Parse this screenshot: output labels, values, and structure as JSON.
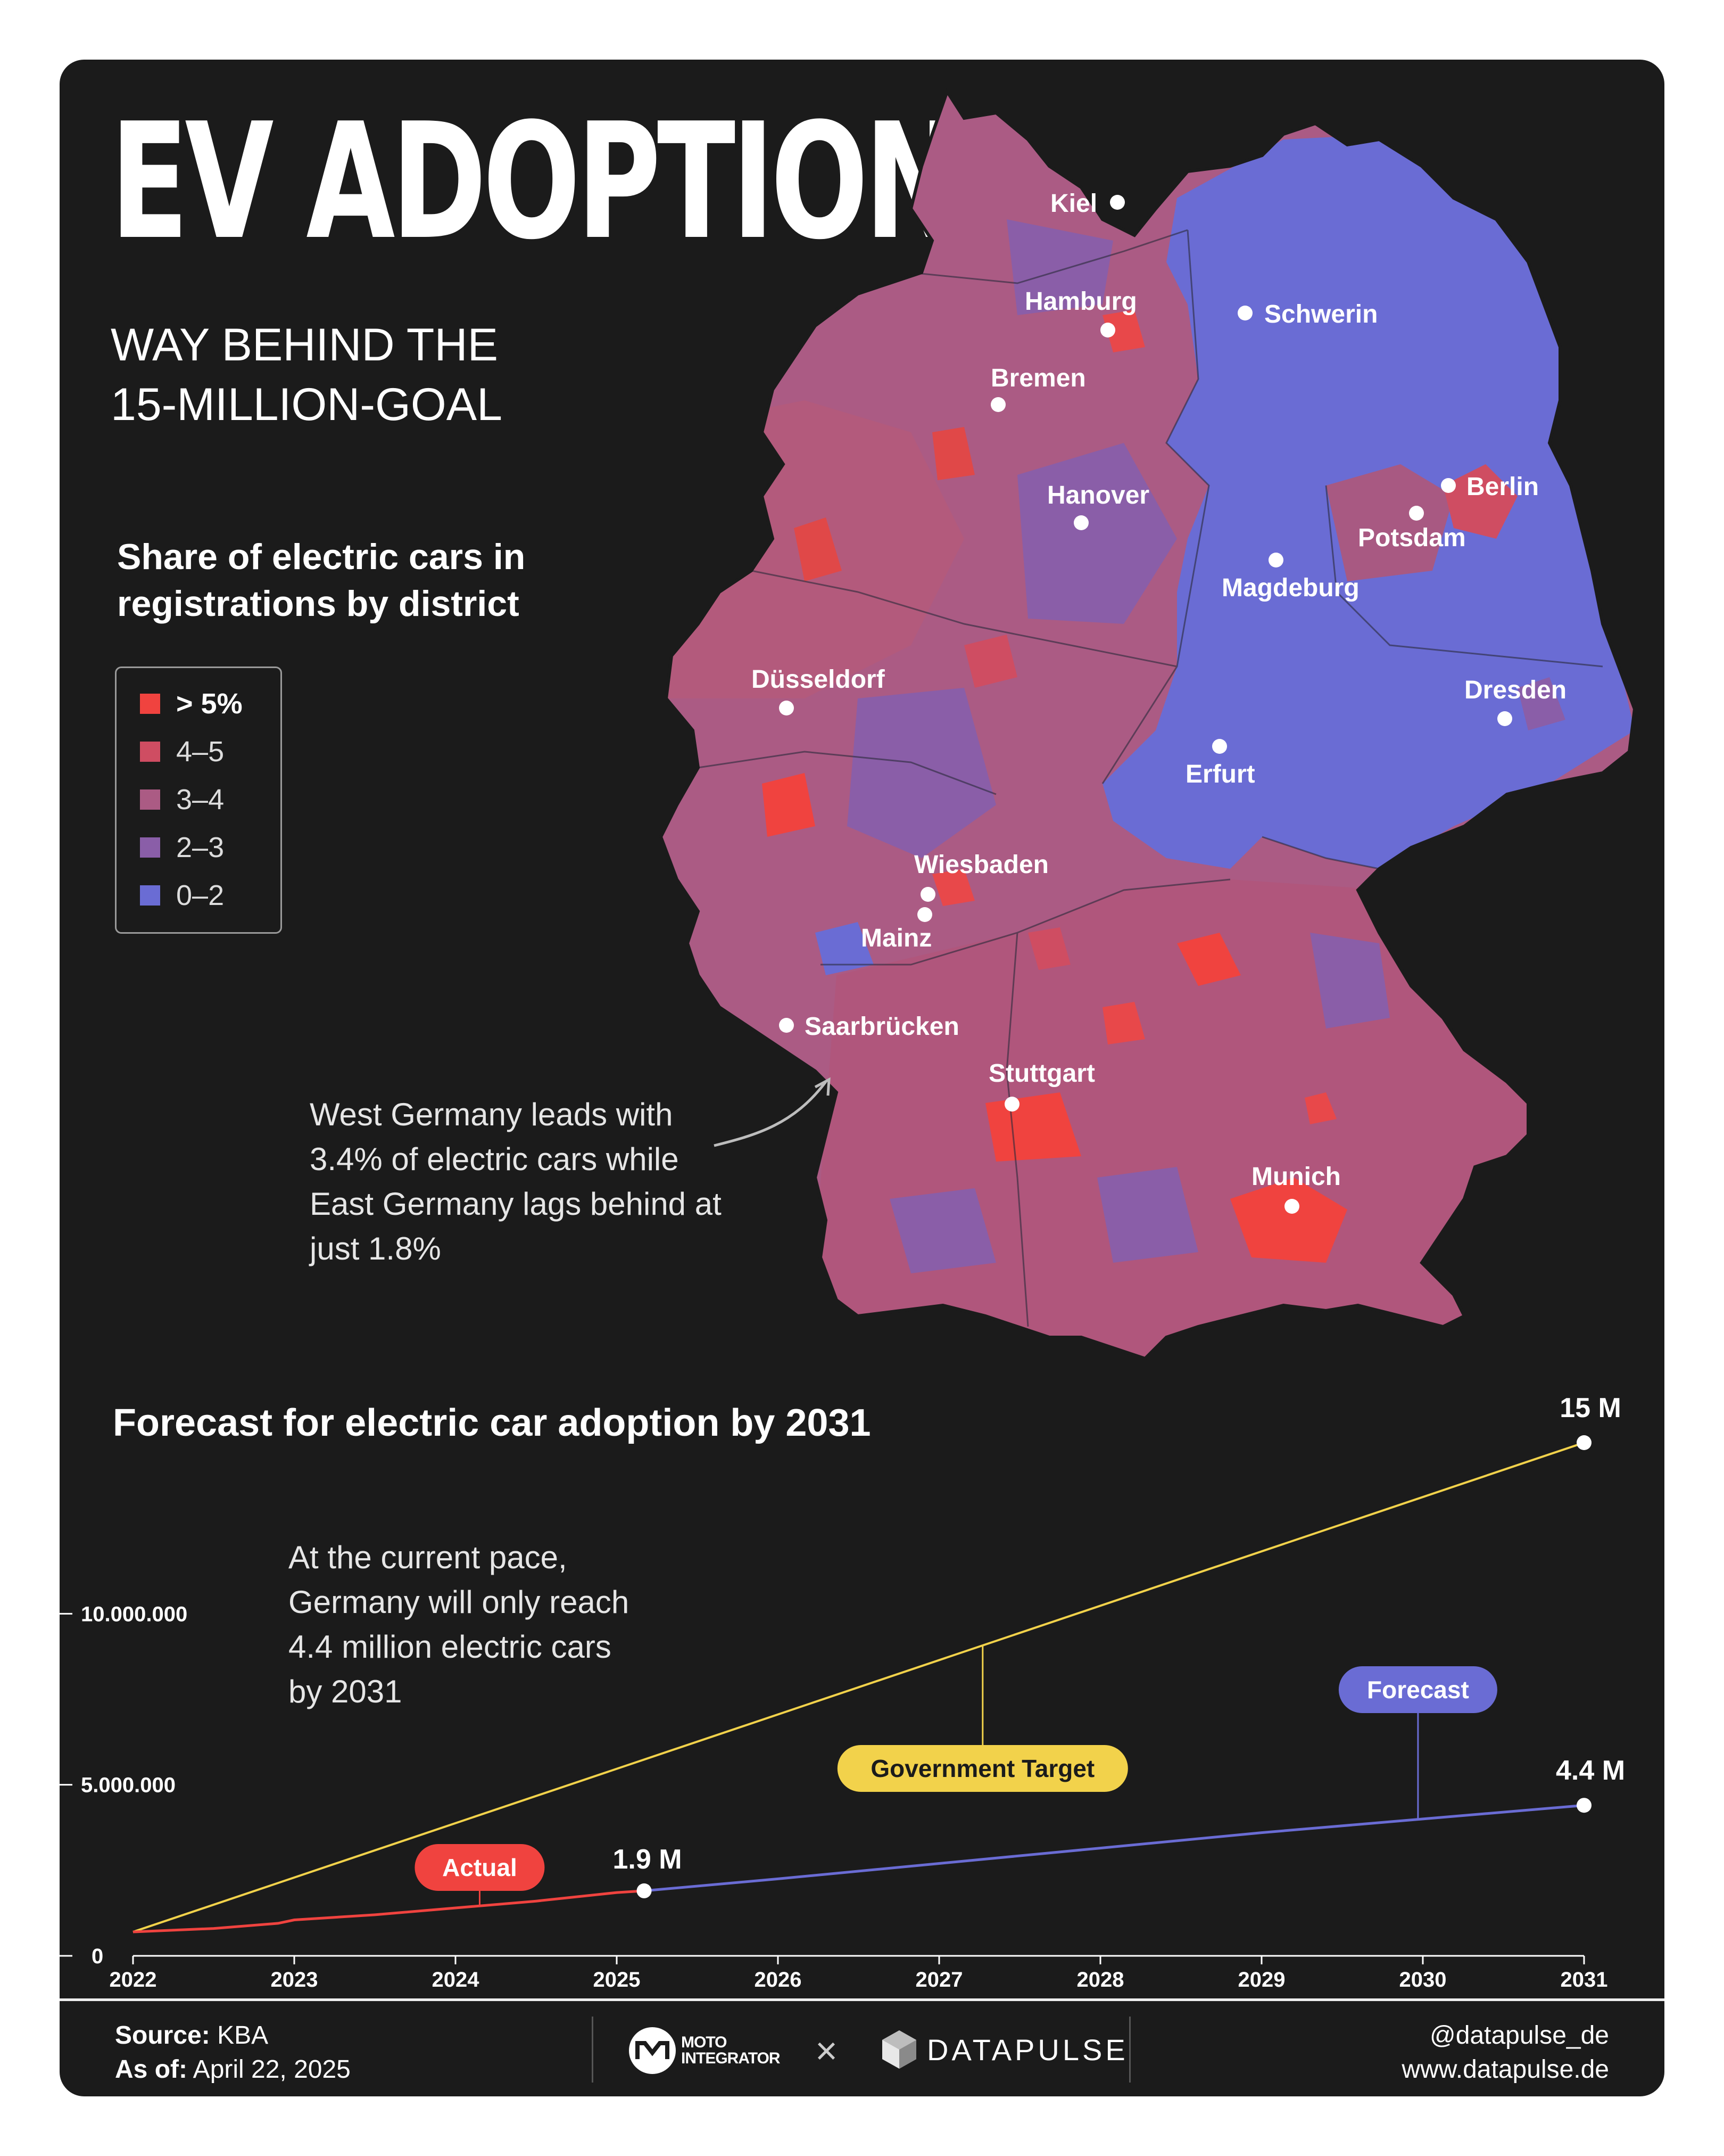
{
  "header": {
    "title": "EV ADOPTION",
    "subtitle_line1": "WAY BEHIND THE",
    "subtitle_line2": "15-MILLION-GOAL"
  },
  "map": {
    "heading_line1": "Share of electric cars in",
    "heading_line2": "registrations by district",
    "legend": [
      {
        "label": "> 5%",
        "color": "#f0433f"
      },
      {
        "label": "4–5",
        "color": "#cf4d62"
      },
      {
        "label": "3–4",
        "color": "#ab5b84"
      },
      {
        "label": "2–3",
        "color": "#8a5ea8"
      },
      {
        "label": "0–2",
        "color": "#6a6cd4"
      }
    ],
    "note_lines": [
      "West Germany leads with",
      "3.4% of electric cars while",
      "East Germany lags behind at",
      "just 1.8%"
    ],
    "cities": [
      "Kiel",
      "Hamburg",
      "Schwerin",
      "Bremen",
      "Berlin",
      "Potsdam",
      "Hanover",
      "Magdeburg",
      "Düsseldorf",
      "Dresden",
      "Erfurt",
      "Wiesbaden",
      "Mainz",
      "Saarbrücken",
      "Stuttgart",
      "Munich"
    ]
  },
  "chart": {
    "heading": "Forecast for electric car adoption by 2031",
    "note_lines": [
      "At the current pace,",
      "Germany will only reach",
      "4.4 million electric cars",
      "by 2031"
    ],
    "badges": {
      "actual": "Actual",
      "target": "Government Target",
      "forecast": "Forecast"
    },
    "point_labels": {
      "current": "1.9 M",
      "target_end": "15 M",
      "forecast_end": "4.4 M"
    }
  },
  "chart_data": {
    "type": "line",
    "title": "Forecast for electric car adoption by 2031",
    "xlabel": "",
    "ylabel": "",
    "x_ticks": [
      "2022",
      "2023",
      "2024",
      "2025",
      "2026",
      "2027",
      "2028",
      "2029",
      "2030",
      "2031"
    ],
    "y_ticks": [
      "0",
      "5.000.000",
      "10.000.000"
    ],
    "ylim": [
      0,
      15000000
    ],
    "xlim": [
      2022,
      2031
    ],
    "grid": false,
    "series": [
      {
        "name": "Government Target",
        "color": "#f2d24b",
        "points": [
          [
            2022.0,
            700000
          ],
          [
            2031.0,
            15000000
          ]
        ]
      },
      {
        "name": "Actual",
        "color": "#f0433f",
        "points": [
          [
            2022.0,
            700000
          ],
          [
            2022.5,
            800000
          ],
          [
            2022.9,
            950000
          ],
          [
            2023.0,
            1050000
          ],
          [
            2023.5,
            1200000
          ],
          [
            2024.0,
            1400000
          ],
          [
            2024.5,
            1600000
          ],
          [
            2025.0,
            1850000
          ],
          [
            2025.17,
            1900000
          ]
        ]
      },
      {
        "name": "Forecast",
        "color": "#6a6cd4",
        "points": [
          [
            2025.17,
            1900000
          ],
          [
            2026.0,
            2250000
          ],
          [
            2027.0,
            2700000
          ],
          [
            2028.0,
            3150000
          ],
          [
            2029.0,
            3600000
          ],
          [
            2030.0,
            4000000
          ],
          [
            2031.0,
            4400000
          ]
        ]
      }
    ],
    "annotations": [
      {
        "text": "1.9 M",
        "x": 2025.17,
        "y": 1900000
      },
      {
        "text": "15 M",
        "x": 2031.0,
        "y": 15000000
      },
      {
        "text": "4.4 M",
        "x": 2031.0,
        "y": 4400000
      }
    ]
  },
  "footer": {
    "source_label": "Source:",
    "source_value": "KBA",
    "asof_label": "As of:",
    "asof_value": "April 22, 2025",
    "brand1_line1": "MOTO",
    "brand1_line2": "INTEGRATOR",
    "cross": "×",
    "brand2": "DATAPULSE",
    "handle": "@datapulse_de",
    "website": "www.datapulse.de"
  }
}
